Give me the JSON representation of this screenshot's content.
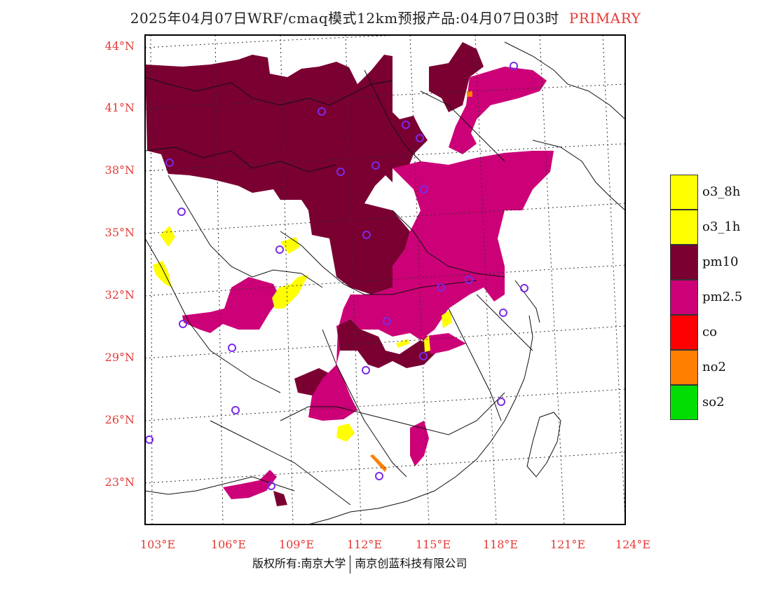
{
  "title": {
    "main": "2025年04月07日WRF/cmaq模式12km预报产品:04月07日03时",
    "tag": "PRIMARY"
  },
  "colors": {
    "tick": "#e53935",
    "o3_8h": "#ffff00",
    "o3_1h": "#ffff00",
    "pm10": "#7a0032",
    "pm2_5": "#cc0077",
    "co": "#ff0000",
    "no2": "#ff7f00",
    "so2": "#00dd00",
    "station": "#7b2be8"
  },
  "axes": {
    "lat_labels": [
      "44°N",
      "41°N",
      "38°N",
      "35°N",
      "32°N",
      "29°N",
      "26°N",
      "23°N"
    ],
    "lon_labels": [
      "103°E",
      "106°E",
      "109°E",
      "112°E",
      "115°E",
      "118°E",
      "121°E",
      "124°E"
    ]
  },
  "legend": [
    {
      "label": "o3_8h",
      "color": "#ffff00"
    },
    {
      "label": "o3_1h",
      "color": "#ffff00"
    },
    {
      "label": "pm10",
      "color": "#7a0032"
    },
    {
      "label": "pm2.5",
      "color": "#cc0077"
    },
    {
      "label": "co",
      "color": "#ff0000"
    },
    {
      "label": "no2",
      "color": "#ff7f00"
    },
    {
      "label": "so2",
      "color": "#00dd00"
    }
  ],
  "footer": {
    "left": "版权所有:南京大学",
    "right": "南京创蓝科技有限公司"
  }
}
